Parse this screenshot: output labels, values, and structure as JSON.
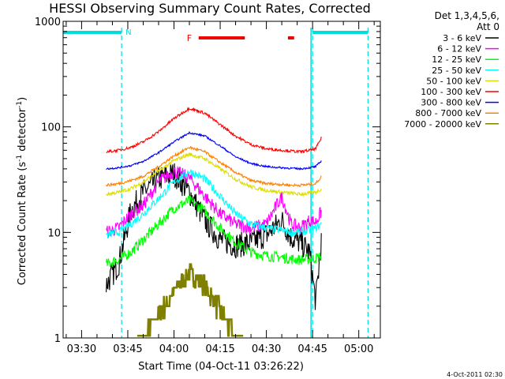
{
  "chart_data": {
    "type": "line",
    "title": "HESSI Observing Summary Count Rates, Corrected",
    "xlabel": "Start Time (04-Oct-11 03:26:22)",
    "ylabel": "Corrected Count Rate (s",
    "ylabel_sup1": "-1",
    "ylabel_mid": " detector",
    "ylabel_sup2": "-1",
    "ylabel_end": ")",
    "xscale": "linear",
    "yscale": "log",
    "xlim": [
      "03:24",
      "05:07"
    ],
    "ylim": [
      1,
      1000
    ],
    "x_ticks": [
      "03:30",
      "03:45",
      "04:00",
      "04:15",
      "04:30",
      "04:45",
      "05:00"
    ],
    "y_ticks": [
      "1",
      "10",
      "100",
      "1000"
    ],
    "data_start": "03:38",
    "data_end": "04:48",
    "legend_header": [
      "Det 1,3,4,5,6,",
      "Att 0"
    ],
    "legend_position": "right",
    "series": [
      {
        "name": "3 - 6 keV",
        "color": "#000000",
        "values": [
          [
            3.2,
            5.0,
            16.0,
            24.0,
            32.0,
            36.0,
            24.0,
            13.0,
            8.5,
            7.5,
            8.0,
            9.5,
            13.0,
            9.0,
            8.0,
            6.5,
            2.2,
            9.0
          ]
        ]
      },
      {
        "name": "6 - 12 keV",
        "color": "#ff00ff",
        "values": [
          [
            10.0,
            11.0,
            15.0,
            18.0,
            30.0,
            38.0,
            33.0,
            22.0,
            15.0,
            12.0,
            11.0,
            12.0,
            22.0,
            12.0,
            11.0,
            13.0,
            12.5,
            16.0
          ]
        ]
      },
      {
        "name": "12 - 25 keV",
        "color": "#00ff00",
        "values": [
          [
            5.0,
            5.5,
            6.5,
            8.5,
            12.0,
            17.0,
            20.0,
            16.0,
            11.0,
            8.0,
            6.5,
            6.0,
            5.8,
            5.6,
            5.5,
            5.6,
            5.7,
            6.0
          ]
        ]
      },
      {
        "name": "25 - 50 keV",
        "color": "#00ffff",
        "values": [
          [
            9.5,
            10.0,
            12.0,
            15.0,
            21.0,
            30.0,
            38.0,
            32.0,
            22.0,
            15.0,
            12.0,
            11.0,
            10.5,
            10.0,
            10.0,
            10.5,
            11.0,
            12.0
          ]
        ]
      },
      {
        "name": "50 - 100 keV",
        "color": "#dddd00",
        "values": [
          [
            23.0,
            24.0,
            26.0,
            30.0,
            38.0,
            48.0,
            55.0,
            50.0,
            40.0,
            32.0,
            27.0,
            25.0,
            24.0,
            23.5,
            23.0,
            23.5,
            24.0,
            26.0
          ]
        ]
      },
      {
        "name": "100 - 300 keV",
        "color": "#ff0000",
        "values": [
          [
            58.0,
            60.0,
            64.0,
            72.0,
            90.0,
            120.0,
            150.0,
            135.0,
            105.0,
            82.0,
            68.0,
            62.0,
            60.0,
            59.0,
            58.0,
            60.0,
            62.0,
            80.0
          ]
        ]
      },
      {
        "name": "300 - 800 keV",
        "color": "#0000ff",
        "values": [
          [
            40.0,
            41.0,
            43.0,
            47.0,
            57.0,
            72.0,
            88.0,
            82.0,
            66.0,
            52.0,
            45.0,
            42.0,
            41.0,
            40.5,
            40.0,
            41.0,
            42.0,
            48.0
          ]
        ]
      },
      {
        "name": "800 - 7000 keV",
        "color": "#ff8000",
        "values": [
          [
            28.0,
            29.0,
            31.0,
            34.0,
            42.0,
            53.0,
            64.0,
            58.0,
            46.0,
            37.0,
            31.0,
            29.0,
            28.5,
            28.0,
            28.0,
            28.5,
            29.0,
            34.0
          ]
        ]
      },
      {
        "name": "7000 - 20000 keV",
        "color": "#808000",
        "values": [
          [
            0.0,
            0.0,
            0.0,
            1.0,
            1.6,
            2.8,
            4.2,
            3.2,
            1.8,
            1.0,
            0.0,
            0.0,
            0.0,
            0.0,
            0.0,
            0.0,
            0.0,
            0.0
          ]
        ]
      }
    ],
    "series_x": [
      "03:38",
      "03:42",
      "03:46",
      "03:50",
      "03:55",
      "04:00",
      "04:05",
      "04:10",
      "04:15",
      "04:20",
      "04:25",
      "04:30",
      "04:35",
      "04:38",
      "04:41",
      "04:44",
      "04:46",
      "04:48"
    ],
    "night_bars": [
      [
        "03:24",
        "03:43"
      ],
      [
        "04:45",
        "05:03"
      ]
    ],
    "night_label": "N",
    "night_color": "#00dddd",
    "saa_dashes": [
      "03:43",
      "04:45",
      "05:03"
    ],
    "flare_label": "F",
    "flare_bars": [
      [
        "04:08",
        "04:23"
      ],
      [
        "04:37",
        "04:39"
      ]
    ],
    "flare_color": "#ee0000"
  },
  "footer": {
    "timestamp": "4-Oct-2011 02:30"
  }
}
